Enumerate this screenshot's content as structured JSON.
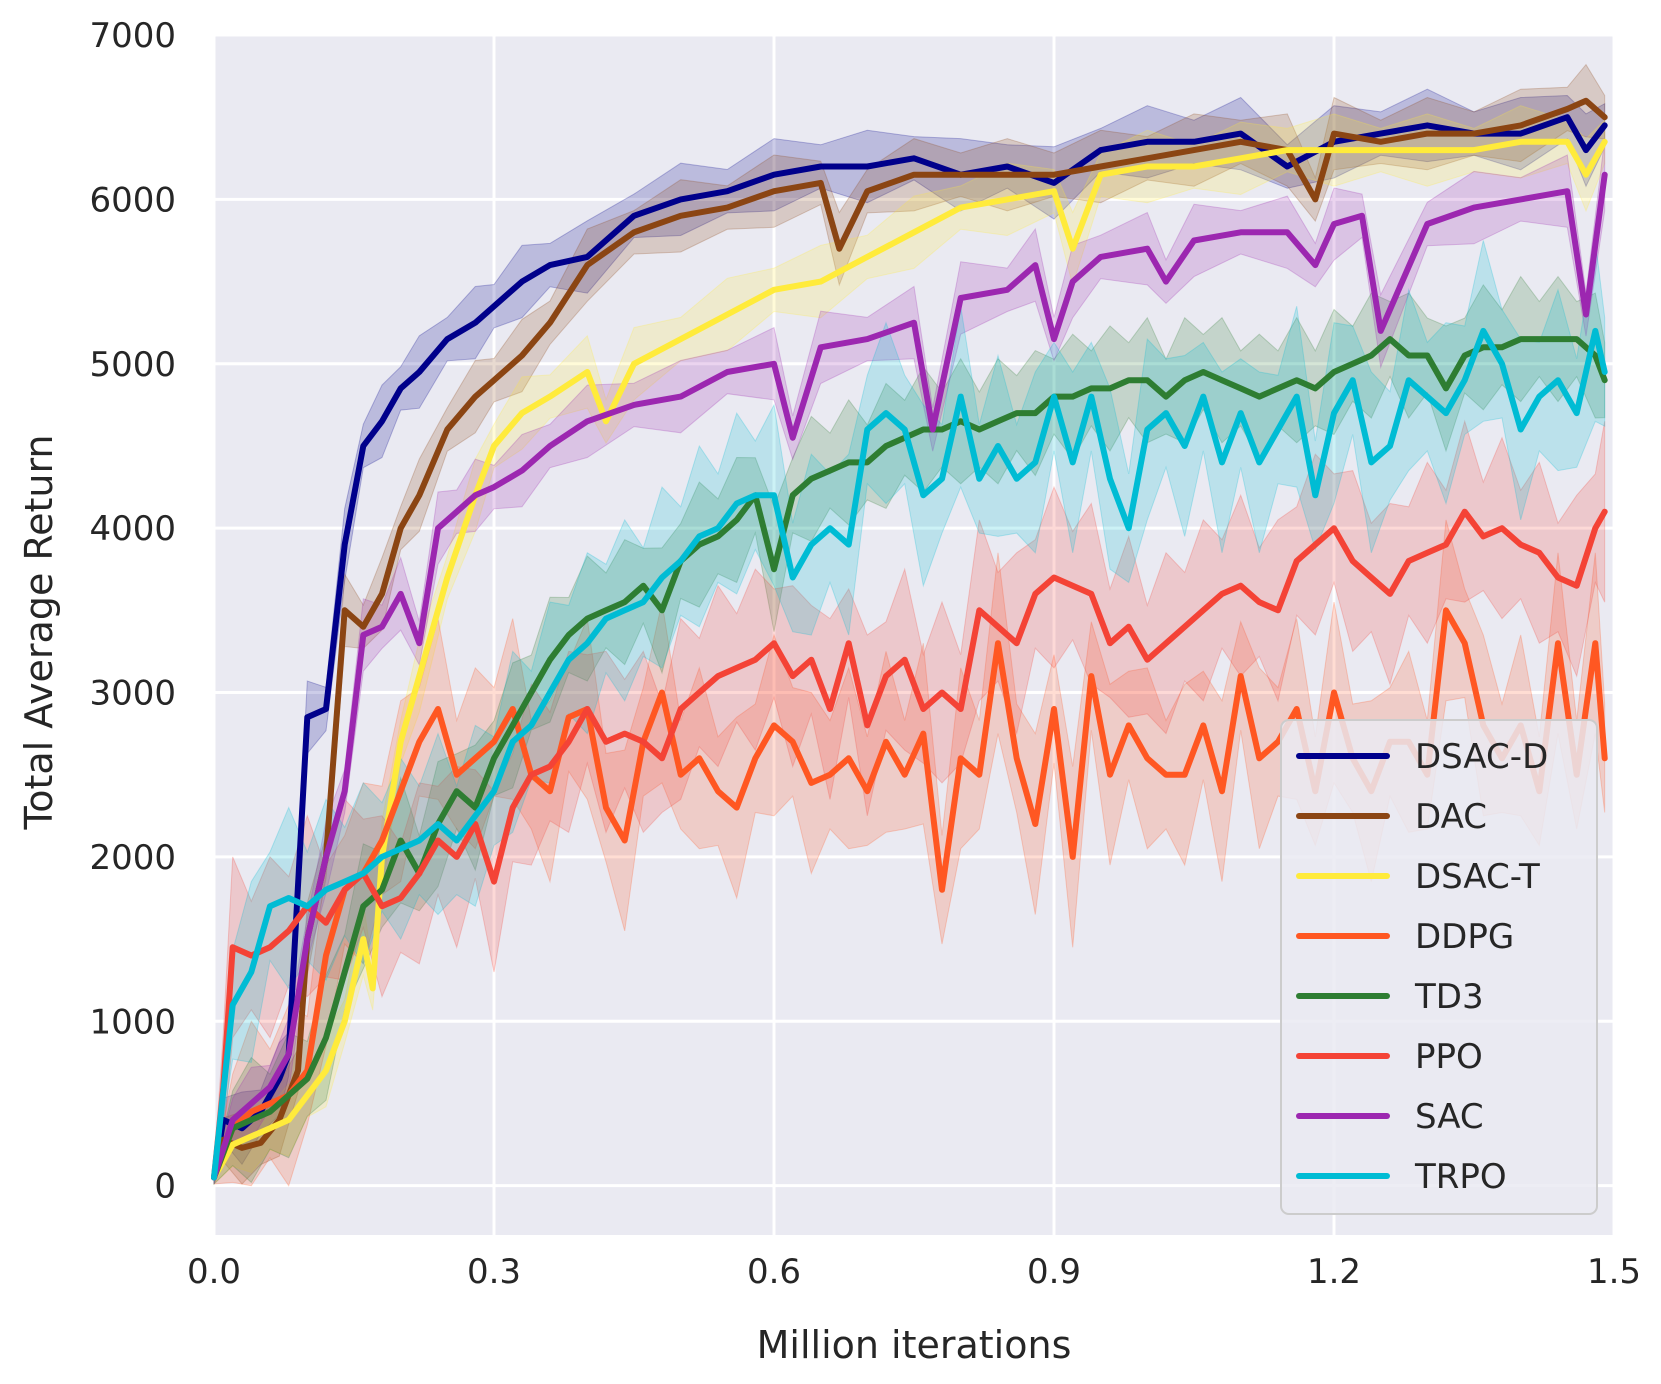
{
  "chart_data": {
    "type": "line",
    "title": "",
    "xlabel": "Million iterations",
    "ylabel": "Total Average Return",
    "xlim": [
      0.0,
      1.5
    ],
    "ylim": [
      -300,
      7000
    ],
    "xticks": [
      "0.0",
      "0.3",
      "0.6",
      "0.9",
      "1.2",
      "1.5"
    ],
    "xtick_values": [
      0.0,
      0.3,
      0.6,
      0.9,
      1.2,
      1.5
    ],
    "yticks": [
      "0",
      "1000",
      "2000",
      "3000",
      "4000",
      "5000",
      "6000",
      "7000"
    ],
    "ytick_values": [
      0,
      1000,
      2000,
      3000,
      4000,
      5000,
      6000,
      7000
    ],
    "grid": true,
    "background": "#eaeaf2",
    "legend_position": "lower-right",
    "series": [
      {
        "name": "DSAC-D",
        "color": "#00008b",
        "x": [
          0.0,
          0.01,
          0.03,
          0.05,
          0.07,
          0.08,
          0.1,
          0.12,
          0.14,
          0.16,
          0.18,
          0.2,
          0.22,
          0.25,
          0.28,
          0.3,
          0.33,
          0.36,
          0.4,
          0.45,
          0.5,
          0.55,
          0.6,
          0.65,
          0.7,
          0.75,
          0.8,
          0.85,
          0.9,
          0.95,
          1.0,
          1.05,
          1.1,
          1.15,
          1.2,
          1.25,
          1.3,
          1.35,
          1.4,
          1.45,
          1.47,
          1.49
        ],
        "y": [
          50,
          400,
          350,
          450,
          650,
          800,
          2850,
          2900,
          3900,
          4500,
          4650,
          4850,
          4950,
          5150,
          5250,
          5350,
          5500,
          5600,
          5650,
          5900,
          6000,
          6050,
          6150,
          6200,
          6200,
          6250,
          6150,
          6200,
          6100,
          6300,
          6350,
          6350,
          6400,
          6200,
          6350,
          6400,
          6450,
          6400,
          6400,
          6500,
          6300,
          6450
        ]
      },
      {
        "name": "DAC",
        "color": "#8b4513",
        "x": [
          0.0,
          0.01,
          0.03,
          0.05,
          0.07,
          0.09,
          0.1,
          0.12,
          0.14,
          0.16,
          0.18,
          0.2,
          0.22,
          0.25,
          0.28,
          0.3,
          0.33,
          0.36,
          0.4,
          0.45,
          0.5,
          0.55,
          0.6,
          0.65,
          0.67,
          0.7,
          0.75,
          0.8,
          0.85,
          0.9,
          0.95,
          1.0,
          1.05,
          1.1,
          1.15,
          1.18,
          1.2,
          1.25,
          1.3,
          1.35,
          1.4,
          1.45,
          1.47,
          1.49
        ],
        "y": [
          50,
          280,
          230,
          260,
          400,
          700,
          1500,
          2000,
          3500,
          3400,
          3600,
          4000,
          4200,
          4600,
          4800,
          4900,
          5050,
          5250,
          5600,
          5800,
          5900,
          5950,
          6050,
          6100,
          5700,
          6050,
          6150,
          6150,
          6150,
          6150,
          6200,
          6250,
          6300,
          6350,
          6300,
          6000,
          6400,
          6350,
          6400,
          6400,
          6450,
          6550,
          6600,
          6500
        ]
      },
      {
        "name": "DSAC-T",
        "color": "#ffeb3b",
        "x": [
          0.0,
          0.02,
          0.04,
          0.06,
          0.08,
          0.1,
          0.12,
          0.14,
          0.16,
          0.17,
          0.18,
          0.2,
          0.22,
          0.25,
          0.28,
          0.3,
          0.33,
          0.36,
          0.4,
          0.42,
          0.45,
          0.5,
          0.55,
          0.6,
          0.65,
          0.7,
          0.75,
          0.8,
          0.85,
          0.9,
          0.92,
          0.95,
          1.0,
          1.05,
          1.1,
          1.15,
          1.2,
          1.25,
          1.3,
          1.35,
          1.4,
          1.45,
          1.47,
          1.49
        ],
        "y": [
          50,
          250,
          300,
          350,
          400,
          550,
          700,
          1000,
          1500,
          1200,
          2000,
          2700,
          3100,
          3700,
          4200,
          4500,
          4700,
          4800,
          4950,
          4650,
          5000,
          5150,
          5300,
          5450,
          5500,
          5650,
          5800,
          5950,
          6000,
          6050,
          5700,
          6150,
          6200,
          6200,
          6250,
          6300,
          6300,
          6300,
          6300,
          6300,
          6350,
          6350,
          6150,
          6350
        ]
      },
      {
        "name": "DDPG",
        "color": "#ff5722",
        "x": [
          0.0,
          0.02,
          0.04,
          0.06,
          0.08,
          0.1,
          0.12,
          0.14,
          0.16,
          0.18,
          0.2,
          0.22,
          0.24,
          0.26,
          0.28,
          0.3,
          0.32,
          0.34,
          0.36,
          0.38,
          0.4,
          0.42,
          0.44,
          0.46,
          0.48,
          0.5,
          0.52,
          0.54,
          0.56,
          0.58,
          0.6,
          0.62,
          0.64,
          0.66,
          0.68,
          0.7,
          0.72,
          0.74,
          0.76,
          0.78,
          0.8,
          0.82,
          0.84,
          0.86,
          0.88,
          0.9,
          0.92,
          0.94,
          0.96,
          0.98,
          1.0,
          1.02,
          1.04,
          1.06,
          1.08,
          1.1,
          1.12,
          1.14,
          1.16,
          1.18,
          1.2,
          1.22,
          1.24,
          1.26,
          1.28,
          1.3,
          1.32,
          1.34,
          1.36,
          1.38,
          1.4,
          1.42,
          1.44,
          1.46,
          1.48,
          1.49
        ],
        "y": [
          50,
          350,
          450,
          500,
          550,
          700,
          1400,
          1800,
          1900,
          2100,
          2400,
          2700,
          2900,
          2500,
          2600,
          2700,
          2900,
          2500,
          2400,
          2850,
          2900,
          2300,
          2100,
          2700,
          3000,
          2500,
          2600,
          2400,
          2300,
          2600,
          2800,
          2700,
          2450,
          2500,
          2600,
          2400,
          2700,
          2500,
          2750,
          1800,
          2600,
          2500,
          3300,
          2600,
          2200,
          2900,
          2000,
          3100,
          2500,
          2800,
          2600,
          2500,
          2500,
          2800,
          2400,
          3100,
          2600,
          2700,
          2900,
          2400,
          3000,
          2600,
          2400,
          2700,
          2700,
          2500,
          3500,
          3300,
          2800,
          2600,
          2800,
          2400,
          3300,
          2500,
          3300,
          2600
        ]
      },
      {
        "name": "TD3",
        "color": "#2e7d32",
        "x": [
          0.0,
          0.02,
          0.04,
          0.06,
          0.08,
          0.1,
          0.12,
          0.14,
          0.16,
          0.18,
          0.2,
          0.22,
          0.24,
          0.26,
          0.28,
          0.3,
          0.32,
          0.34,
          0.36,
          0.38,
          0.4,
          0.42,
          0.44,
          0.46,
          0.48,
          0.5,
          0.52,
          0.54,
          0.56,
          0.58,
          0.6,
          0.62,
          0.64,
          0.66,
          0.68,
          0.7,
          0.72,
          0.74,
          0.76,
          0.78,
          0.8,
          0.82,
          0.84,
          0.86,
          0.88,
          0.9,
          0.92,
          0.94,
          0.96,
          0.98,
          1.0,
          1.02,
          1.04,
          1.06,
          1.08,
          1.1,
          1.12,
          1.14,
          1.16,
          1.18,
          1.2,
          1.22,
          1.24,
          1.26,
          1.28,
          1.3,
          1.32,
          1.34,
          1.36,
          1.38,
          1.4,
          1.42,
          1.44,
          1.46,
          1.48,
          1.49
        ],
        "y": [
          50,
          350,
          400,
          450,
          550,
          650,
          900,
          1300,
          1700,
          1800,
          2100,
          1900,
          2200,
          2400,
          2300,
          2600,
          2800,
          3000,
          3200,
          3350,
          3450,
          3500,
          3550,
          3650,
          3500,
          3800,
          3900,
          3950,
          4050,
          4200,
          3750,
          4200,
          4300,
          4350,
          4400,
          4400,
          4500,
          4550,
          4600,
          4600,
          4650,
          4600,
          4650,
          4700,
          4700,
          4800,
          4800,
          4850,
          4850,
          4900,
          4900,
          4800,
          4900,
          4950,
          4900,
          4850,
          4800,
          4850,
          4900,
          4850,
          4950,
          5000,
          5050,
          5150,
          5050,
          5050,
          4850,
          5050,
          5100,
          5100,
          5150,
          5150,
          5150,
          5150,
          5050,
          4900
        ]
      },
      {
        "name": "PPO",
        "color": "#f44336",
        "x": [
          0.0,
          0.01,
          0.02,
          0.04,
          0.06,
          0.08,
          0.1,
          0.12,
          0.14,
          0.16,
          0.18,
          0.2,
          0.22,
          0.24,
          0.26,
          0.28,
          0.3,
          0.32,
          0.34,
          0.36,
          0.38,
          0.4,
          0.42,
          0.44,
          0.46,
          0.48,
          0.5,
          0.52,
          0.54,
          0.56,
          0.58,
          0.6,
          0.62,
          0.64,
          0.66,
          0.68,
          0.7,
          0.72,
          0.74,
          0.76,
          0.78,
          0.8,
          0.82,
          0.84,
          0.86,
          0.88,
          0.9,
          0.92,
          0.94,
          0.96,
          0.98,
          1.0,
          1.02,
          1.04,
          1.06,
          1.08,
          1.1,
          1.12,
          1.14,
          1.16,
          1.18,
          1.2,
          1.22,
          1.24,
          1.26,
          1.28,
          1.3,
          1.32,
          1.34,
          1.36,
          1.38,
          1.4,
          1.42,
          1.44,
          1.46,
          1.48,
          1.49
        ],
        "y": [
          50,
          600,
          1450,
          1400,
          1450,
          1550,
          1700,
          1600,
          1800,
          1900,
          1700,
          1750,
          1900,
          2100,
          2000,
          2200,
          1850,
          2300,
          2500,
          2550,
          2700,
          2900,
          2700,
          2750,
          2700,
          2600,
          2900,
          3000,
          3100,
          3150,
          3200,
          3300,
          3100,
          3200,
          2900,
          3300,
          2800,
          3100,
          3200,
          2900,
          3000,
          2900,
          3500,
          3400,
          3300,
          3600,
          3700,
          3650,
          3600,
          3300,
          3400,
          3200,
          3300,
          3400,
          3500,
          3600,
          3650,
          3550,
          3500,
          3800,
          3900,
          4000,
          3800,
          3700,
          3600,
          3800,
          3850,
          3900,
          4100,
          3950,
          4000,
          3900,
          3850,
          3700,
          3650,
          4000,
          4100
        ]
      },
      {
        "name": "SAC",
        "color": "#9c27b0",
        "x": [
          0.0,
          0.02,
          0.04,
          0.06,
          0.08,
          0.1,
          0.12,
          0.14,
          0.16,
          0.18,
          0.2,
          0.22,
          0.24,
          0.26,
          0.28,
          0.3,
          0.33,
          0.36,
          0.4,
          0.45,
          0.5,
          0.55,
          0.6,
          0.62,
          0.65,
          0.7,
          0.75,
          0.77,
          0.8,
          0.85,
          0.88,
          0.9,
          0.92,
          0.95,
          1.0,
          1.02,
          1.05,
          1.1,
          1.15,
          1.18,
          1.2,
          1.23,
          1.25,
          1.3,
          1.35,
          1.4,
          1.45,
          1.47,
          1.49
        ],
        "y": [
          50,
          400,
          500,
          600,
          800,
          1500,
          2000,
          2400,
          3350,
          3400,
          3600,
          3300,
          4000,
          4100,
          4200,
          4250,
          4350,
          4500,
          4650,
          4750,
          4800,
          4950,
          5000,
          4550,
          5100,
          5150,
          5250,
          4600,
          5400,
          5450,
          5600,
          5150,
          5500,
          5650,
          5700,
          5500,
          5750,
          5800,
          5800,
          5600,
          5850,
          5900,
          5200,
          5850,
          5950,
          6000,
          6050,
          5300,
          6150
        ]
      },
      {
        "name": "TRPO",
        "color": "#00bcd4",
        "x": [
          0.0,
          0.02,
          0.04,
          0.06,
          0.08,
          0.1,
          0.12,
          0.14,
          0.16,
          0.18,
          0.2,
          0.22,
          0.24,
          0.26,
          0.28,
          0.3,
          0.32,
          0.34,
          0.36,
          0.38,
          0.4,
          0.42,
          0.44,
          0.46,
          0.48,
          0.5,
          0.52,
          0.54,
          0.56,
          0.58,
          0.6,
          0.62,
          0.64,
          0.66,
          0.68,
          0.7,
          0.72,
          0.74,
          0.76,
          0.78,
          0.8,
          0.82,
          0.84,
          0.86,
          0.88,
          0.9,
          0.92,
          0.94,
          0.96,
          0.98,
          1.0,
          1.02,
          1.04,
          1.06,
          1.08,
          1.1,
          1.12,
          1.14,
          1.16,
          1.18,
          1.2,
          1.22,
          1.24,
          1.26,
          1.28,
          1.3,
          1.32,
          1.34,
          1.36,
          1.38,
          1.4,
          1.42,
          1.44,
          1.46,
          1.48,
          1.49
        ],
        "y": [
          50,
          1100,
          1300,
          1700,
          1750,
          1700,
          1800,
          1850,
          1900,
          2000,
          2050,
          2100,
          2200,
          2100,
          2250,
          2400,
          2700,
          2800,
          3000,
          3200,
          3300,
          3450,
          3500,
          3550,
          3700,
          3800,
          3950,
          4000,
          4150,
          4200,
          4200,
          3700,
          3900,
          4000,
          3900,
          4600,
          4700,
          4600,
          4200,
          4300,
          4800,
          4300,
          4500,
          4300,
          4400,
          4800,
          4400,
          4800,
          4300,
          4000,
          4600,
          4700,
          4500,
          4800,
          4400,
          4700,
          4400,
          4600,
          4800,
          4200,
          4700,
          4900,
          4400,
          4500,
          4900,
          4800,
          4700,
          4900,
          5200,
          5000,
          4600,
          4800,
          4900,
          4700,
          5200,
          4950
        ]
      }
    ]
  }
}
